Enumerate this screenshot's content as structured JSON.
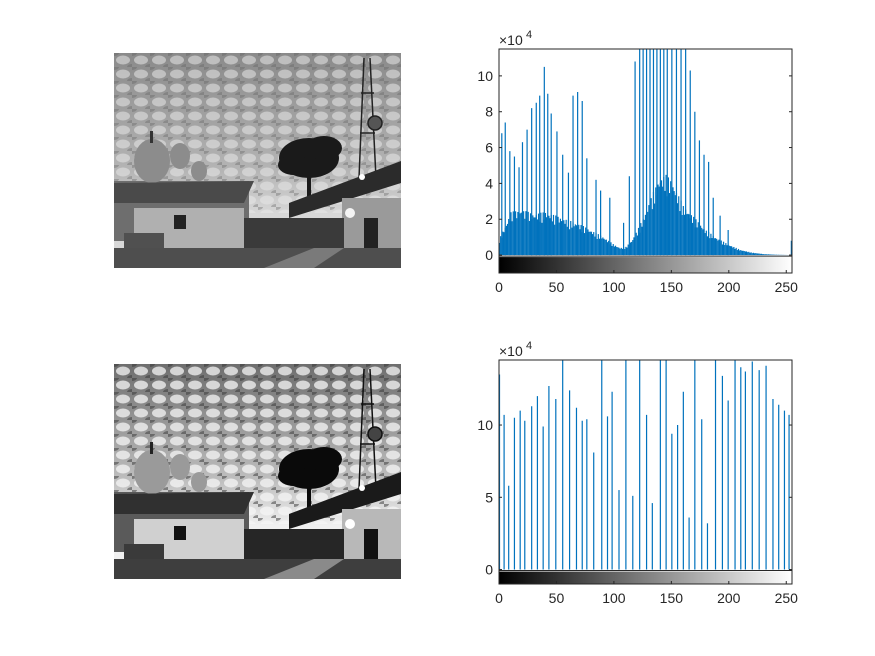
{
  "chart_data": [
    {
      "type": "image",
      "description_label": "",
      "colormap": "gray"
    },
    {
      "type": "bar",
      "title": "",
      "xlabel": "",
      "ylabel": "",
      "xlim": [
        0,
        255
      ],
      "ylim": [
        -10000,
        115000
      ],
      "xticks": [
        0,
        50,
        100,
        150,
        200,
        250
      ],
      "xtick_labels": [
        "0",
        "50",
        "100",
        "150",
        "200",
        "250"
      ],
      "yticks": [
        0,
        20000,
        40000,
        60000,
        80000,
        100000
      ],
      "ytick_labels": [
        "0",
        "2",
        "4",
        "6",
        "8",
        "10"
      ],
      "y_exponent": "×10",
      "y_exponent_power": "4",
      "color": "#0072BD",
      "colorbar": "gray 0-255",
      "bins": {
        "start": 0,
        "end": 255,
        "step": 1
      },
      "envelope": [
        [
          0,
          8000
        ],
        [
          5,
          14000
        ],
        [
          10,
          21000
        ],
        [
          20,
          22000
        ],
        [
          30,
          20000
        ],
        [
          40,
          21000
        ],
        [
          50,
          19000
        ],
        [
          60,
          17000
        ],
        [
          70,
          15000
        ],
        [
          80,
          12000
        ],
        [
          90,
          9000
        ],
        [
          100,
          5000
        ],
        [
          105,
          3500
        ],
        [
          110,
          4000
        ],
        [
          115,
          7000
        ],
        [
          120,
          12000
        ],
        [
          125,
          18000
        ],
        [
          130,
          25000
        ],
        [
          135,
          32000
        ],
        [
          140,
          38000
        ],
        [
          145,
          39000
        ],
        [
          150,
          36000
        ],
        [
          155,
          30000
        ],
        [
          160,
          24000
        ],
        [
          170,
          18000
        ],
        [
          180,
          12000
        ],
        [
          190,
          8000
        ],
        [
          200,
          5000
        ],
        [
          210,
          2500
        ],
        [
          220,
          1200
        ],
        [
          230,
          500
        ],
        [
          240,
          200
        ],
        [
          255,
          0
        ]
      ],
      "spikes": [
        [
          2,
          68000
        ],
        [
          5,
          74000
        ],
        [
          9,
          58000
        ],
        [
          13,
          55000
        ],
        [
          17,
          49000
        ],
        [
          20,
          63000
        ],
        [
          24,
          70000
        ],
        [
          28,
          82000
        ],
        [
          32,
          85000
        ],
        [
          35,
          89000
        ],
        [
          39,
          105000
        ],
        [
          42,
          90000
        ],
        [
          45,
          79000
        ],
        [
          50,
          69000
        ],
        [
          55,
          56000
        ],
        [
          60,
          46000
        ],
        [
          64,
          89000
        ],
        [
          68,
          91000
        ],
        [
          72,
          86000
        ],
        [
          76,
          54000
        ],
        [
          84,
          42000
        ],
        [
          88,
          36000
        ],
        [
          96,
          32000
        ],
        [
          108,
          18000
        ],
        [
          113,
          44000
        ],
        [
          118,
          108000
        ],
        [
          122,
          120000
        ],
        [
          125,
          120000
        ],
        [
          128,
          120000
        ],
        [
          131,
          120000
        ],
        [
          134,
          120000
        ],
        [
          137,
          120000
        ],
        [
          140,
          120000
        ],
        [
          143,
          120000
        ],
        [
          146,
          120000
        ],
        [
          150,
          120000
        ],
        [
          154,
          120000
        ],
        [
          158,
          120000
        ],
        [
          162,
          120000
        ],
        [
          166,
          103000
        ],
        [
          170,
          80000
        ],
        [
          174,
          64000
        ],
        [
          178,
          56000
        ],
        [
          182,
          52000
        ],
        [
          186,
          32000
        ],
        [
          192,
          22000
        ],
        [
          199,
          14000
        ],
        [
          254,
          8000
        ]
      ]
    },
    {
      "type": "image",
      "description_label": "",
      "colormap": "gray"
    },
    {
      "type": "bar",
      "title": "",
      "xlabel": "",
      "ylabel": "",
      "xlim": [
        0,
        255
      ],
      "ylim": [
        -10000,
        145000
      ],
      "xticks": [
        0,
        50,
        100,
        150,
        200,
        250
      ],
      "xtick_labels": [
        "0",
        "50",
        "100",
        "150",
        "200",
        "250"
      ],
      "yticks": [
        0,
        50000,
        100000
      ],
      "ytick_labels": [
        "0",
        "5",
        "10"
      ],
      "y_exponent": "×10",
      "y_exponent_power": "4",
      "color": "#0072BD",
      "colorbar": "gray 0-255",
      "spikes": [
        [
          0,
          135000
        ],
        [
          4,
          107000
        ],
        [
          8,
          58000
        ],
        [
          13,
          105000
        ],
        [
          18,
          110000
        ],
        [
          22,
          103000
        ],
        [
          28,
          113000
        ],
        [
          33,
          120000
        ],
        [
          38,
          99000
        ],
        [
          43,
          127000
        ],
        [
          49,
          118000
        ],
        [
          55,
          145000
        ],
        [
          61,
          124000
        ],
        [
          67,
          112000
        ],
        [
          72,
          103000
        ],
        [
          76,
          104000
        ],
        [
          82,
          81000
        ],
        [
          89,
          145000
        ],
        [
          94,
          106000
        ],
        [
          98,
          123000
        ],
        [
          104,
          55000
        ],
        [
          110,
          145000
        ],
        [
          116,
          51000
        ],
        [
          122,
          145000
        ],
        [
          128,
          107000
        ],
        [
          133,
          46000
        ],
        [
          140,
          145000
        ],
        [
          145,
          145000
        ],
        [
          150,
          94000
        ],
        [
          155,
          100000
        ],
        [
          160,
          123000
        ],
        [
          165,
          36000
        ],
        [
          170,
          145000
        ],
        [
          176,
          104000
        ],
        [
          181,
          32000
        ],
        [
          188,
          145000
        ],
        [
          194,
          134000
        ],
        [
          199,
          117000
        ],
        [
          205,
          145000
        ],
        [
          210,
          140000
        ],
        [
          214,
          137000
        ],
        [
          220,
          144000
        ],
        [
          226,
          138000
        ],
        [
          232,
          141000
        ],
        [
          238,
          118000
        ],
        [
          243,
          114000
        ],
        [
          248,
          110000
        ],
        [
          252,
          107000
        ]
      ]
    }
  ]
}
